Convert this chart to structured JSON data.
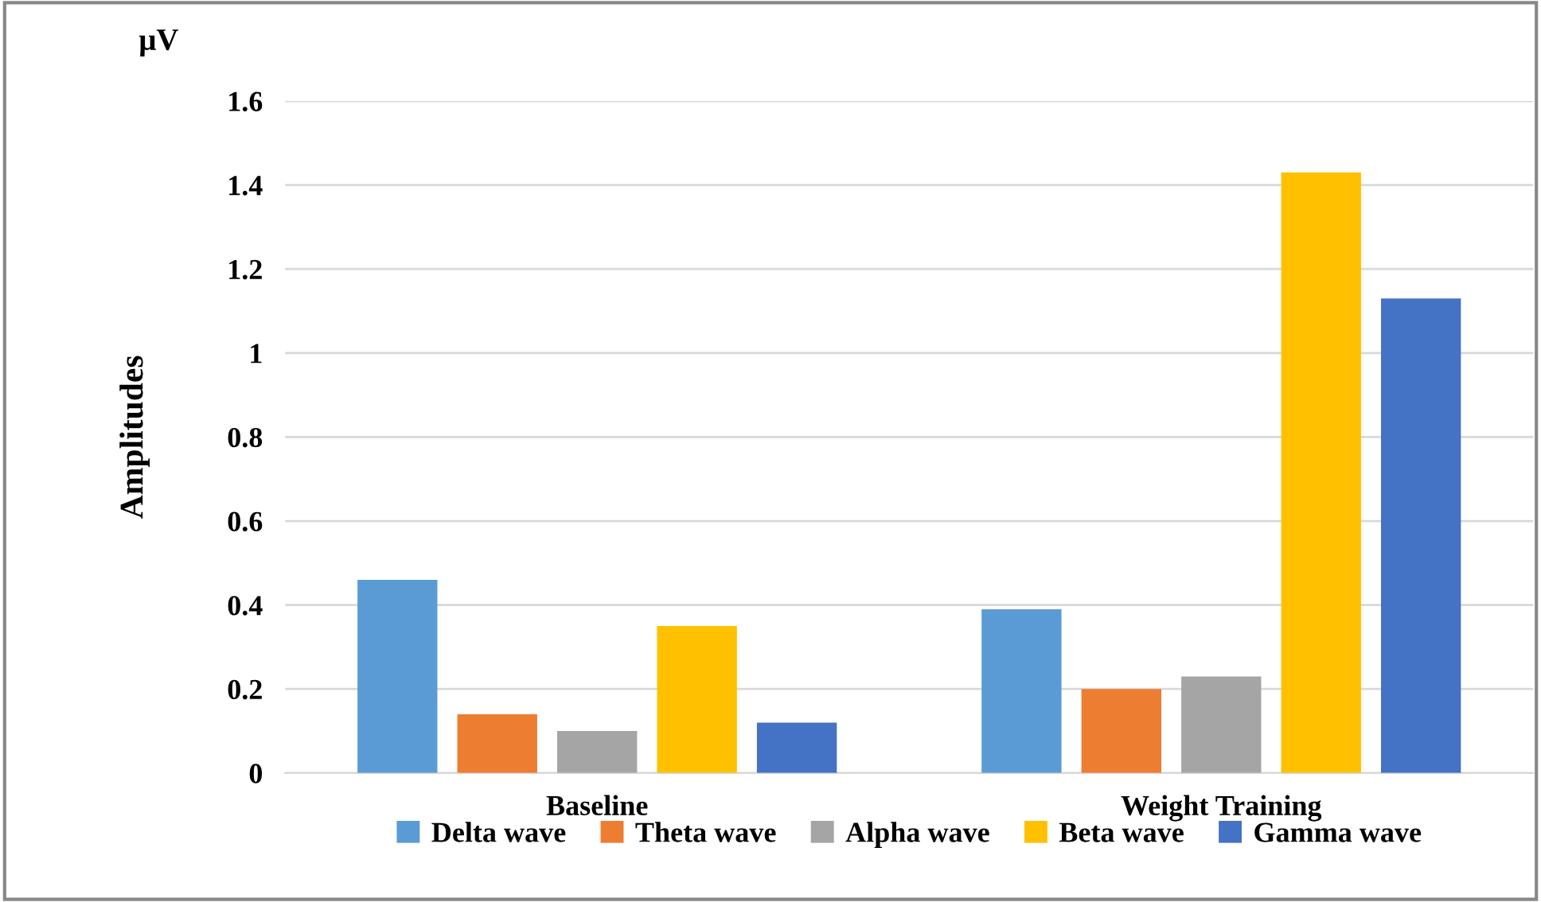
{
  "chart_data": {
    "type": "bar",
    "ylabel": "Amplitudes",
    "annotations": [
      "μV"
    ],
    "categories": [
      "Baseline",
      "Weight Training"
    ],
    "series": [
      {
        "name": "Delta wave",
        "color": "#5b9bd5",
        "values": [
          0.46,
          0.39
        ]
      },
      {
        "name": "Theta wave",
        "color": "#ed7d31",
        "values": [
          0.14,
          0.2
        ]
      },
      {
        "name": "Alpha wave",
        "color": "#a5a5a5",
        "values": [
          0.1,
          0.23
        ]
      },
      {
        "name": "Beta wave",
        "color": "#ffc000",
        "values": [
          0.35,
          1.43
        ]
      },
      {
        "name": "Gamma wave",
        "color": "#4472c4",
        "values": [
          0.12,
          1.13
        ]
      }
    ],
    "ylim": [
      0,
      1.6
    ],
    "yticks": [
      0,
      0.2,
      0.4,
      0.6,
      0.8,
      1,
      1.2,
      1.4,
      1.6
    ],
    "grid": "y",
    "legend": "bottom"
  }
}
